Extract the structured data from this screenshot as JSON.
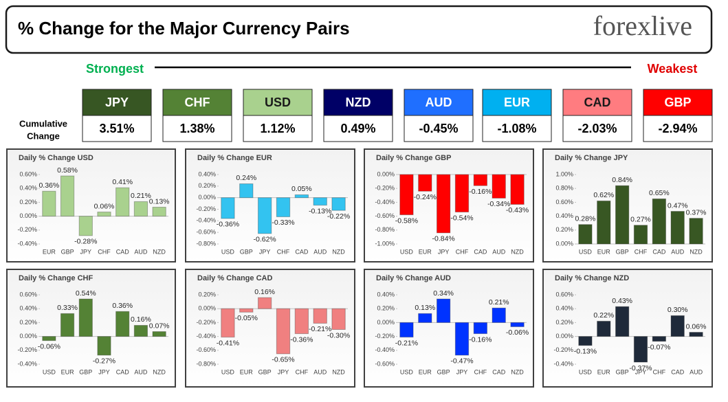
{
  "header": {
    "title": "% Change for the Major Currency Pairs",
    "logo": "forexlive"
  },
  "strongest": "Strongest",
  "weakest": "Weakest",
  "strength": {
    "label": [
      "Cumulative",
      "Change"
    ],
    "currencies": [
      "JPY",
      "CHF",
      "USD",
      "NZD",
      "AUD",
      "EUR",
      "CAD",
      "GBP"
    ],
    "colors": [
      "#375623",
      "#548235",
      "#a9d18e",
      "#000066",
      "#1f6fff",
      "#00b0f0",
      "#ff7c80",
      "#ff0000"
    ],
    "values": [
      "3.51%",
      "1.38%",
      "1.12%",
      "0.49%",
      "-0.45%",
      "-1.08%",
      "-2.03%",
      "-2.94%"
    ]
  },
  "chart_data": [
    {
      "type": "bar",
      "title": "Daily % Change USD",
      "color": "#a9d18e",
      "categories": [
        "EUR",
        "GBP",
        "JPY",
        "CHF",
        "CAD",
        "AUD",
        "NZD"
      ],
      "values": [
        0.36,
        0.58,
        -0.28,
        0.06,
        0.41,
        0.21,
        0.13
      ],
      "value_labels": [
        "0.36%",
        "0.58%",
        "-0.28%",
        "0.06%",
        "0.41%",
        "0.21%",
        "0.13%"
      ],
      "ylim": [
        -0.4,
        0.6
      ],
      "yticks": [
        {
          "value": -0.4,
          "label": "-0.40%"
        },
        {
          "value": -0.2,
          "label": "-0.20%"
        },
        {
          "value": 0,
          "label": "0.00%"
        },
        {
          "value": 0.2,
          "label": "0.20%"
        },
        {
          "value": 0.4,
          "label": "0.40%"
        },
        {
          "value": 0.6,
          "label": "0.60%"
        }
      ]
    },
    {
      "type": "bar",
      "title": "Daily % Change EUR",
      "color": "#33c3f0",
      "categories": [
        "USD",
        "GBP",
        "JPY",
        "CHF",
        "CAD",
        "AUD",
        "NZD"
      ],
      "values": [
        -0.36,
        0.24,
        -0.62,
        -0.33,
        0.05,
        -0.13,
        -0.22
      ],
      "value_labels": [
        "-0.36%",
        "0.24%",
        "-0.62%",
        "-0.33%",
        "0.05%",
        "-0.13%",
        "-0.22%"
      ],
      "ylim": [
        -0.8,
        0.4
      ],
      "yticks": [
        {
          "value": -0.8,
          "label": "-0.80%"
        },
        {
          "value": -0.6,
          "label": "-0.60%"
        },
        {
          "value": -0.4,
          "label": "-0.40%"
        },
        {
          "value": -0.2,
          "label": "-0.20%"
        },
        {
          "value": 0,
          "label": "0.00%"
        },
        {
          "value": 0.2,
          "label": "0.20%"
        },
        {
          "value": 0.4,
          "label": "0.40%"
        }
      ]
    },
    {
      "type": "bar",
      "title": "Daily % Change GBP",
      "color": "#ff0000",
      "categories": [
        "USD",
        "EUR",
        "JPY",
        "CHF",
        "CAD",
        "AUD",
        "NZD"
      ],
      "values": [
        -0.58,
        -0.24,
        -0.84,
        -0.54,
        -0.16,
        -0.34,
        -0.43
      ],
      "value_labels": [
        "-0.58%",
        "-0.24%",
        "-0.84%",
        "-0.54%",
        "-0.16%",
        "-0.34%",
        "-0.43%"
      ],
      "ylim": [
        -1,
        0
      ],
      "yticks": [
        {
          "value": -1,
          "label": "-1.00%"
        },
        {
          "value": -0.8,
          "label": "-0.80%"
        },
        {
          "value": -0.6,
          "label": "-0.60%"
        },
        {
          "value": -0.4,
          "label": "-0.40%"
        },
        {
          "value": -0.2,
          "label": "-0.20%"
        },
        {
          "value": 0,
          "label": "0.00%"
        }
      ]
    },
    {
      "type": "bar",
      "title": "Daily % Change JPY",
      "color": "#385723",
      "categories": [
        "USD",
        "EUR",
        "GBP",
        "CHF",
        "CAD",
        "AUD",
        "NZD"
      ],
      "values": [
        0.28,
        0.62,
        0.84,
        0.27,
        0.65,
        0.47,
        0.37
      ],
      "value_labels": [
        "0.28%",
        "0.62%",
        "0.84%",
        "0.27%",
        "0.65%",
        "0.47%",
        "0.37%"
      ],
      "ylim": [
        0,
        1
      ],
      "yticks": [
        {
          "value": 0,
          "label": "0.00%"
        },
        {
          "value": 0.2,
          "label": "0.20%"
        },
        {
          "value": 0.4,
          "label": "0.40%"
        },
        {
          "value": 0.6,
          "label": "0.60%"
        },
        {
          "value": 0.8,
          "label": "0.80%"
        },
        {
          "value": 1,
          "label": "1.00%"
        }
      ]
    },
    {
      "type": "bar",
      "title": "Daily % Change CHF",
      "color": "#548235",
      "categories": [
        "USD",
        "EUR",
        "GBP",
        "JPY",
        "CAD",
        "AUD",
        "NZD"
      ],
      "values": [
        -0.06,
        0.33,
        0.54,
        -0.27,
        0.36,
        0.16,
        0.07
      ],
      "value_labels": [
        "-0.06%",
        "0.33%",
        "0.54%",
        "-0.27%",
        "0.36%",
        "0.16%",
        "0.07%"
      ],
      "ylim": [
        -0.4,
        0.6
      ],
      "yticks": [
        {
          "value": -0.4,
          "label": "-0.40%"
        },
        {
          "value": -0.2,
          "label": "-0.20%"
        },
        {
          "value": 0,
          "label": "0.00%"
        },
        {
          "value": 0.2,
          "label": "0.20%"
        },
        {
          "value": 0.4,
          "label": "0.40%"
        },
        {
          "value": 0.6,
          "label": "0.60%"
        }
      ]
    },
    {
      "type": "bar",
      "title": "Daily % Change CAD",
      "color": "#f08080",
      "categories": [
        "USD",
        "EUR",
        "GBP",
        "JPY",
        "CHF",
        "AUD",
        "NZD"
      ],
      "values": [
        -0.41,
        -0.05,
        0.16,
        -0.65,
        -0.36,
        -0.21,
        -0.3
      ],
      "value_labels": [
        "-0.41%",
        "-0.05%",
        "0.16%",
        "-0.65%",
        "-0.36%",
        "-0.21%",
        "-0.30%"
      ],
      "ylim": [
        -0.8,
        0.2
      ],
      "yticks": [
        {
          "value": -0.8,
          "label": "-0.80%"
        },
        {
          "value": -0.6,
          "label": "-0.60%"
        },
        {
          "value": -0.4,
          "label": "-0.40%"
        },
        {
          "value": -0.2,
          "label": "-0.20%"
        },
        {
          "value": 0,
          "label": "0.00%"
        },
        {
          "value": 0.2,
          "label": "0.20%"
        }
      ]
    },
    {
      "type": "bar",
      "title": "Daily % Change AUD",
      "color": "#0033ff",
      "categories": [
        "USD",
        "EUR",
        "GBP",
        "JPY",
        "CHF",
        "CAD",
        "NZD"
      ],
      "values": [
        -0.21,
        0.13,
        0.34,
        -0.47,
        -0.16,
        0.21,
        -0.06
      ],
      "value_labels": [
        "-0.21%",
        "0.13%",
        "0.34%",
        "-0.47%",
        "-0.16%",
        "0.21%",
        "-0.06%"
      ],
      "ylim": [
        -0.6,
        0.4
      ],
      "yticks": [
        {
          "value": -0.6,
          "label": "-0.60%"
        },
        {
          "value": -0.4,
          "label": "-0.40%"
        },
        {
          "value": -0.2,
          "label": "-0.20%"
        },
        {
          "value": 0,
          "label": "0.00%"
        },
        {
          "value": 0.2,
          "label": "0.20%"
        },
        {
          "value": 0.4,
          "label": "0.40%"
        }
      ]
    },
    {
      "type": "bar",
      "title": "Daily % Change NZD",
      "color": "#1f2a3a",
      "categories": [
        "USD",
        "EUR",
        "GBP",
        "JPY",
        "CHF",
        "CAD",
        "AUD"
      ],
      "values": [
        -0.13,
        0.22,
        0.43,
        -0.37,
        -0.07,
        0.3,
        0.06
      ],
      "value_labels": [
        "-0.13%",
        "0.22%",
        "0.43%",
        "-0.37%",
        "-0.07%",
        "0.30%",
        "0.06%"
      ],
      "ylim": [
        -0.4,
        0.6
      ],
      "yticks": [
        {
          "value": -0.4,
          "label": "-0.40%"
        },
        {
          "value": -0.2,
          "label": "-0.20%"
        },
        {
          "value": 0,
          "label": "0.00%"
        },
        {
          "value": 0.2,
          "label": "0.20%"
        },
        {
          "value": 0.4,
          "label": "0.40%"
        },
        {
          "value": 0.6,
          "label": "0.60%"
        }
      ]
    }
  ]
}
